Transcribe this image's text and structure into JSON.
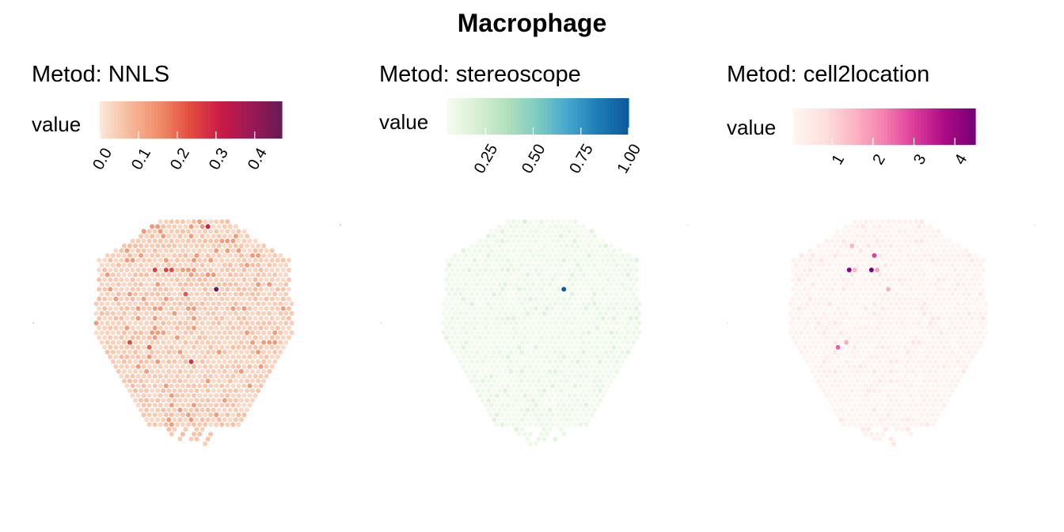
{
  "figure": {
    "title": "Macrophage"
  },
  "chart_data": [
    {
      "type": "heatmap",
      "title": "Metod: NNLS",
      "legend_title": "value",
      "colorscale": [
        "#fbe6d7",
        "#f7b799",
        "#f08a67",
        "#e34b3f",
        "#c91b47",
        "#9c1955",
        "#6a1a55"
      ],
      "value_range": [
        0,
        0.47
      ],
      "ticks": [
        "0.0",
        "0.1",
        "0.2",
        "0.3",
        "0.4"
      ],
      "tick_values": [
        0.0,
        0.1,
        0.2,
        0.3,
        0.4
      ],
      "hotspots": [
        {
          "row": 14,
          "col": 22,
          "value": 0.47
        },
        {
          "row": 1,
          "col": 20,
          "value": 0.3
        },
        {
          "row": 10,
          "col": 11,
          "value": 0.26
        },
        {
          "row": 10,
          "col": 13,
          "value": 0.25
        },
        {
          "row": 10,
          "col": 14,
          "value": 0.24
        },
        {
          "row": 15,
          "col": 16,
          "value": 0.22
        },
        {
          "row": 25,
          "col": 6,
          "value": 0.24
        },
        {
          "row": 29,
          "col": 17,
          "value": 0.28
        },
        {
          "row": 26,
          "col": 10,
          "value": 0.2
        }
      ]
    },
    {
      "type": "heatmap",
      "title": "Metod: stereoscope",
      "legend_title": "value",
      "colorscale": [
        "#f4fbee",
        "#d6efd2",
        "#b0dfbb",
        "#7ccbc3",
        "#46a7cc",
        "#1f7db6",
        "#0d5a9e"
      ],
      "value_range": [
        0.05,
        1.0
      ],
      "ticks": [
        "0.25",
        "0.50",
        "0.75",
        "1.00"
      ],
      "tick_values": [
        0.25,
        0.5,
        0.75,
        1.0
      ],
      "hotspots": [
        {
          "row": 14,
          "col": 22,
          "value": 1.0
        },
        {
          "row": 0,
          "col": 15,
          "value": 0.18
        },
        {
          "row": 10,
          "col": 12,
          "value": 0.16
        },
        {
          "row": 26,
          "col": 14,
          "value": 0.16
        }
      ]
    },
    {
      "type": "heatmap",
      "title": "Metod: cell2location",
      "legend_title": "value",
      "colorscale": [
        "#fff5f1",
        "#fde0dd",
        "#fbb4c3",
        "#f57faf",
        "#dd3c9b",
        "#ad0b85",
        "#780078"
      ],
      "value_range": [
        0.05,
        4.5
      ],
      "ticks": [
        "1",
        "2",
        "3",
        "4"
      ],
      "tick_values": [
        1,
        2,
        3,
        4
      ],
      "hotspots": [
        {
          "row": 10,
          "col": 15,
          "value": 4.5
        },
        {
          "row": 10,
          "col": 11,
          "value": 4.2
        },
        {
          "row": 7,
          "col": 15,
          "value": 3.0
        },
        {
          "row": 10,
          "col": 16,
          "value": 1.8
        },
        {
          "row": 10,
          "col": 12,
          "value": 1.5
        },
        {
          "row": 14,
          "col": 18,
          "value": 1.6
        },
        {
          "row": 5,
          "col": 11,
          "value": 1.5
        },
        {
          "row": 26,
          "col": 9,
          "value": 2.6
        },
        {
          "row": 25,
          "col": 10,
          "value": 1.6
        }
      ]
    }
  ]
}
